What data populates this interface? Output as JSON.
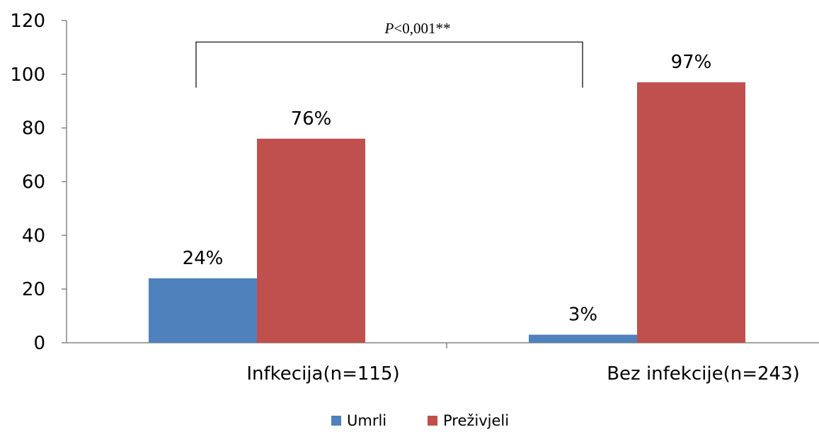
{
  "chart_data": {
    "type": "bar",
    "categories": [
      "Infkecija(n=115)",
      "Bez infekcije(n=243)"
    ],
    "series": [
      {
        "name": "Umrli",
        "values": [
          24,
          3
        ],
        "labels": [
          "24%",
          "3%"
        ],
        "color": "#4F81BD"
      },
      {
        "name": "Preživjeli",
        "values": [
          76,
          97
        ],
        "labels": [
          "76%",
          "97%"
        ],
        "color": "#C0504D"
      }
    ],
    "ylim": [
      0,
      120
    ],
    "yticks": [
      0,
      20,
      40,
      60,
      80,
      100,
      120
    ],
    "ytick_labels": [
      "0",
      "20",
      "40",
      "60",
      "80",
      "100",
      "120"
    ],
    "grid": false,
    "legend_position": "bottom",
    "annotation": {
      "p_symbol": "P",
      "p_text": "<0,001**",
      "bracket_level": 112,
      "bracket_drop_to": 95
    }
  }
}
